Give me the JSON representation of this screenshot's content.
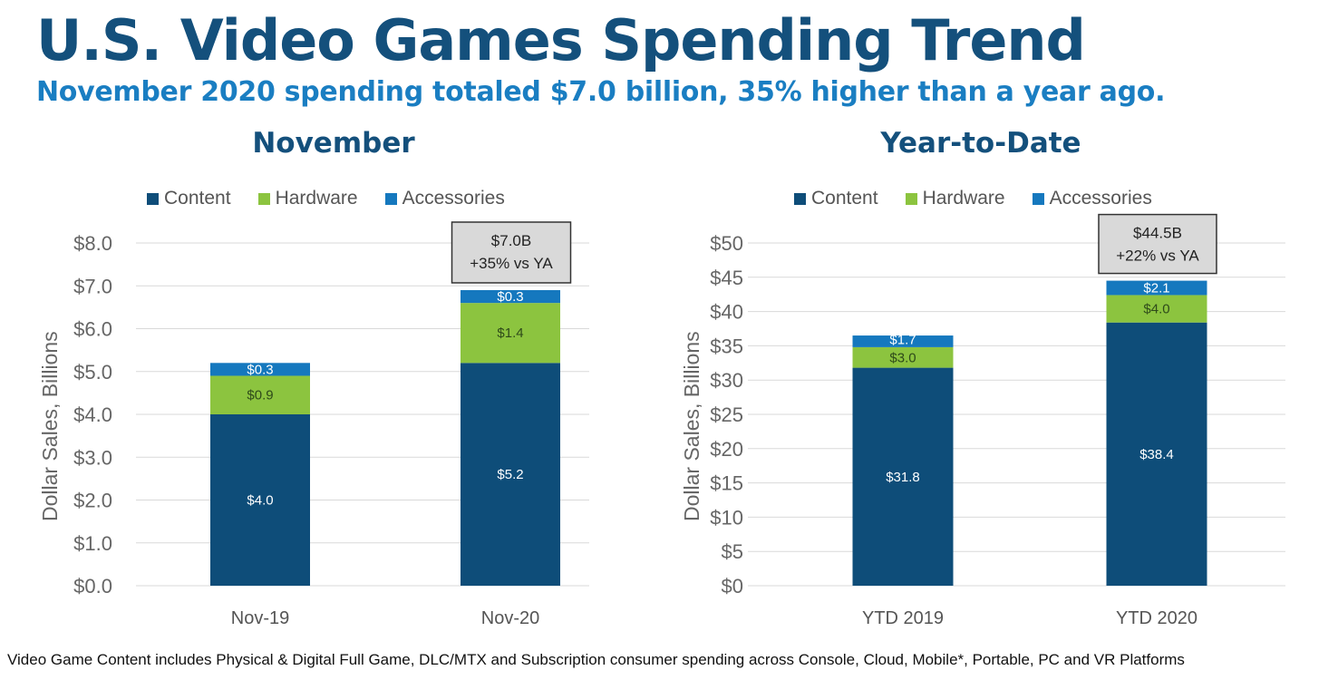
{
  "title": "U.S. Video Games Spending Trend",
  "subtitle": "November 2020 spending totaled $7.0 billion, 35% higher than a year ago.",
  "colors": {
    "content": "#0e4d79",
    "hardware": "#8cc43f",
    "accessories": "#1578be",
    "title": "#14507c",
    "subtitle": "#1a7ec2"
  },
  "chart_data": [
    {
      "type": "bar",
      "stacked": true,
      "title": "November",
      "legend": [
        "Content",
        "Hardware",
        "Accessories"
      ],
      "legend_position": "top",
      "categories": [
        "Nov-19",
        "Nov-20"
      ],
      "series": [
        {
          "name": "Content",
          "values": [
            4.0,
            5.2
          ],
          "labels": [
            "$4.0",
            "$5.2"
          ]
        },
        {
          "name": "Hardware",
          "values": [
            0.9,
            1.4
          ],
          "labels": [
            "$0.9",
            "$1.4"
          ]
        },
        {
          "name": "Accessories",
          "values": [
            0.3,
            0.3
          ],
          "labels": [
            "$0.3",
            "$0.3"
          ]
        }
      ],
      "ylabel": "Dollar Sales, Billions",
      "ylim": [
        0,
        8
      ],
      "yticks": [
        0,
        1,
        2,
        3,
        4,
        5,
        6,
        7,
        8
      ],
      "ytick_labels": [
        "$0.0",
        "$1.0",
        "$2.0",
        "$3.0",
        "$4.0",
        "$5.0",
        "$6.0",
        "$7.0",
        "$8.0"
      ],
      "grid": true,
      "annotation": {
        "category": "Nov-20",
        "line1": "$7.0B",
        "line2": "+35% vs YA"
      }
    },
    {
      "type": "bar",
      "stacked": true,
      "title": "Year-to-Date",
      "legend": [
        "Content",
        "Hardware",
        "Accessories"
      ],
      "legend_position": "top",
      "categories": [
        "YTD 2019",
        "YTD 2020"
      ],
      "series": [
        {
          "name": "Content",
          "values": [
            31.8,
            38.4
          ],
          "labels": [
            "$31.8",
            "$38.4"
          ]
        },
        {
          "name": "Hardware",
          "values": [
            3.0,
            4.0
          ],
          "labels": [
            "$3.0",
            "$4.0"
          ]
        },
        {
          "name": "Accessories",
          "values": [
            1.7,
            2.1
          ],
          "labels": [
            "$1.7",
            "$2.1"
          ]
        }
      ],
      "ylabel": "Dollar Sales, Billions",
      "ylim": [
        0,
        50
      ],
      "yticks": [
        0,
        5,
        10,
        15,
        20,
        25,
        30,
        35,
        40,
        45,
        50
      ],
      "ytick_labels": [
        "$0",
        "$5",
        "$10",
        "$15",
        "$20",
        "$25",
        "$30",
        "$35",
        "$40",
        "$45",
        "$50"
      ],
      "grid": true,
      "annotation": {
        "category": "YTD 2020",
        "line1": "$44.5B",
        "line2": "+22% vs YA"
      }
    }
  ],
  "footnote": "Video Game Content includes Physical & Digital Full Game, DLC/MTX and Subscription consumer spending across Console, Cloud, Mobile*, Portable, PC and VR Platforms"
}
